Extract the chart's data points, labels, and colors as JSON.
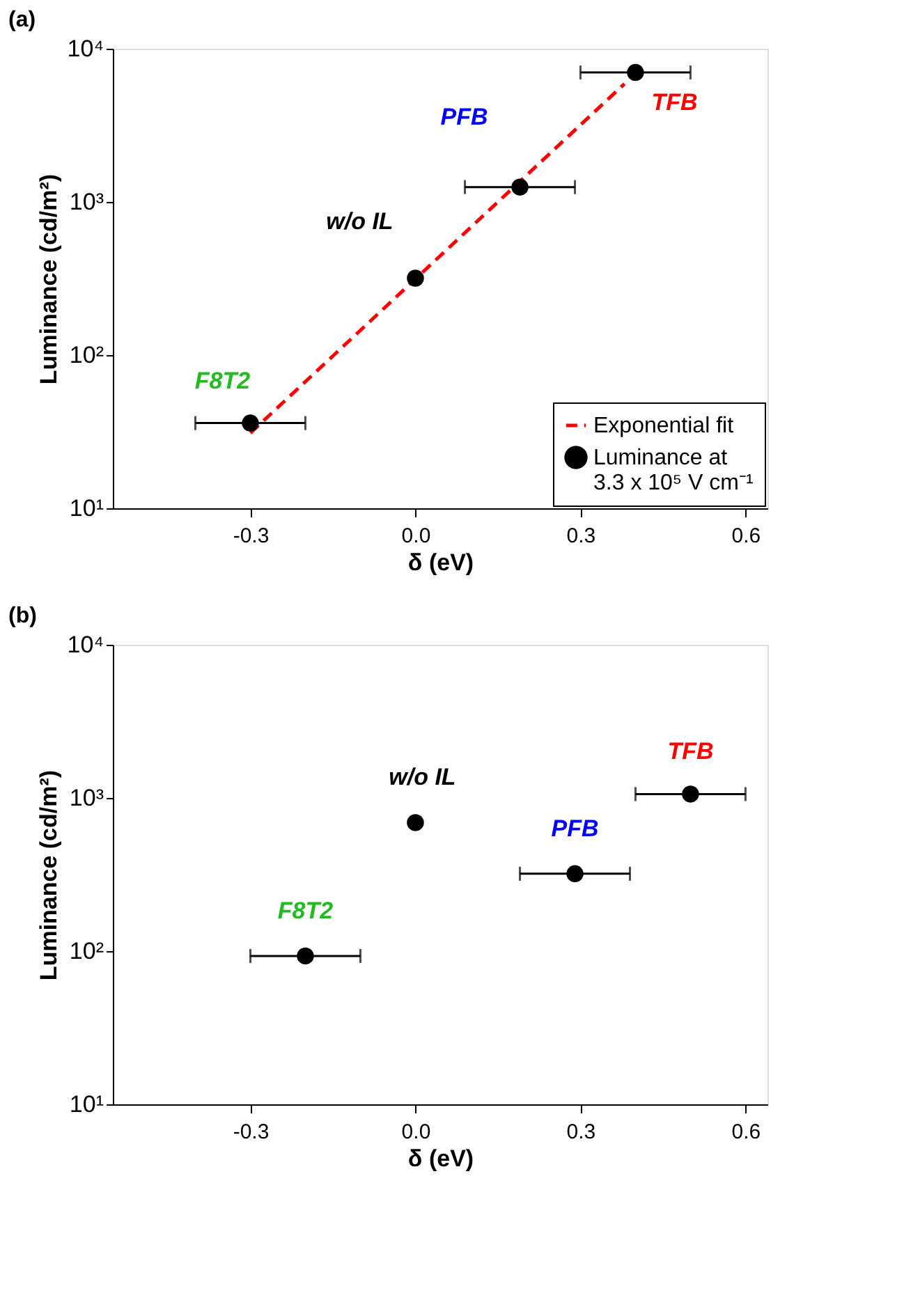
{
  "chart_data": [
    {
      "type": "scatter",
      "title": "(a)",
      "xlabel": "δ (eV)",
      "ylabel": "Luminance (cd/m²)",
      "log": "y",
      "grid": false,
      "legend": "bottom right",
      "xlim": [
        -0.55,
        0.64
      ],
      "xticks": [
        {
          "value": -0.3,
          "label": "-0.3"
        },
        {
          "value": 0,
          "label": "0.0"
        },
        {
          "value": 0.3,
          "label": "0.3"
        },
        {
          "value": 0.6,
          "label": "0.6"
        }
      ],
      "ylim": [
        10,
        10000
      ],
      "yticks": [
        {
          "value": 10,
          "label": "10¹"
        },
        {
          "value": 100,
          "label": "10²"
        },
        {
          "value": 1000,
          "label": "10³"
        },
        {
          "value": 10000,
          "label": "10⁴"
        }
      ],
      "series": [
        {
          "name": "Exponential fit",
          "type": "line",
          "color": "#ff0000",
          "line_style": "dashed",
          "marker": "none",
          "x": [
            -0.3,
            0.38
          ],
          "values": [
            31,
            5900
          ]
        },
        {
          "name": "Luminance  at\n3.3 x 10⁵ V cm⁻¹",
          "color": "#000000",
          "marker": "circle",
          "x": [
            -0.3,
            0.0,
            0.19,
            0.4
          ],
          "values": [
            36,
            318,
            1250,
            7000
          ],
          "xerrors": [
            0.1,
            null,
            0.1,
            0.1
          ]
        }
      ],
      "annotations": [
        {
          "text": "F8T2",
          "x": -0.3,
          "y": 36
        },
        {
          "text": "w/o IL",
          "x": 0.0,
          "y": 318
        },
        {
          "text": "PFB",
          "x": 0.19,
          "y": 1250
        },
        {
          "text": "TFB",
          "x": 0.4,
          "y": 7000
        }
      ]
    },
    {
      "type": "scatter",
      "title": "(b)",
      "xlabel": "δ (eV)",
      "ylabel": "Luminance (cd/m²)",
      "log": "y",
      "grid": false,
      "xlim": [
        -0.55,
        0.64
      ],
      "xticks": [
        {
          "value": -0.3,
          "label": "-0.3"
        },
        {
          "value": 0,
          "label": "0.0"
        },
        {
          "value": 0.3,
          "label": "0.3"
        },
        {
          "value": 0.6,
          "label": "0.6"
        }
      ],
      "ylim": [
        10,
        10000
      ],
      "yticks": [
        {
          "value": 10,
          "label": "10¹"
        },
        {
          "value": 100,
          "label": "10²"
        },
        {
          "value": 1000,
          "label": "10³"
        },
        {
          "value": 10000,
          "label": "10⁴"
        }
      ],
      "series": [
        {
          "color": "#000000",
          "marker": "circle",
          "x": [
            -0.2,
            0.0,
            0.29,
            0.5
          ],
          "values": [
            93,
            690,
            320,
            1060
          ],
          "xerrors": [
            0.1,
            null,
            0.1,
            0.1
          ]
        }
      ],
      "annotations": [
        {
          "text": "F8T2",
          "x": -0.2,
          "y": 93
        },
        {
          "text": "w/o IL",
          "x": 0.0,
          "y": 690
        },
        {
          "text": "PFB",
          "x": 0.29,
          "y": 320
        },
        {
          "text": "TFB",
          "x": 0.5,
          "y": 1060
        }
      ]
    }
  ]
}
